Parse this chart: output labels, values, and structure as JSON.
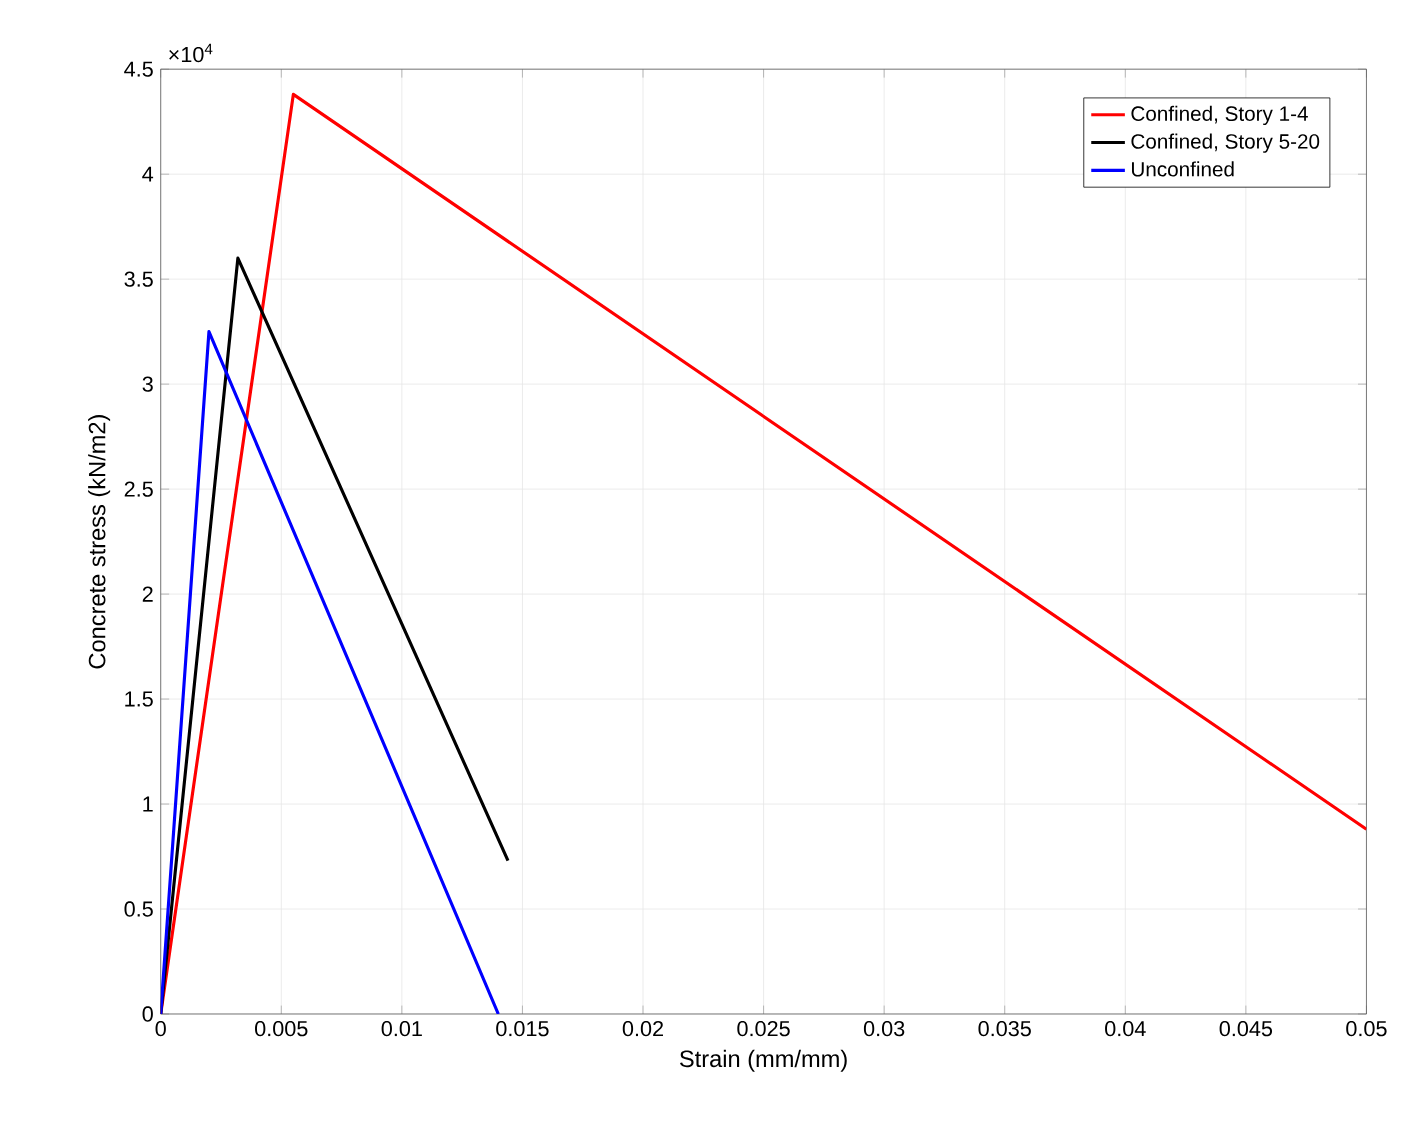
{
  "chart_data": {
    "type": "line",
    "xlabel": "Strain (mm/mm)",
    "ylabel": "Concrete stress (kN/m2)",
    "annotations": [
      "×10$^{4}$"
    ],
    "series": [
      {
        "name": "Confined, Story 1-4",
        "color": "#ff0000",
        "x": [
          0,
          0.0055,
          0.05
        ],
        "values": [
          0,
          4.38,
          0.88
        ]
      },
      {
        "name": "Confined, Story 5-20",
        "color": "#000000",
        "x": [
          0,
          0.0032,
          0.0144
        ],
        "values": [
          0,
          3.6,
          0.73
        ]
      },
      {
        "name": "Unconfined",
        "color": "#0000ff",
        "x": [
          0,
          0.002,
          0.014
        ],
        "values": [
          0,
          3.25,
          0
        ]
      }
    ],
    "xlim": [
      0,
      0.05
    ],
    "ylim": [
      0,
      4.5
    ],
    "xticks": [
      0,
      0.005,
      0.01,
      0.015,
      0.02,
      0.025,
      0.03,
      0.035,
      0.04,
      0.045,
      0.05
    ],
    "yticks": [
      0,
      0.5,
      1,
      1.5,
      2,
      2.5,
      3,
      3.5,
      4,
      4.5
    ],
    "grid": true,
    "legend": "top right",
    "marker": "none",
    "line_style": "solid"
  }
}
